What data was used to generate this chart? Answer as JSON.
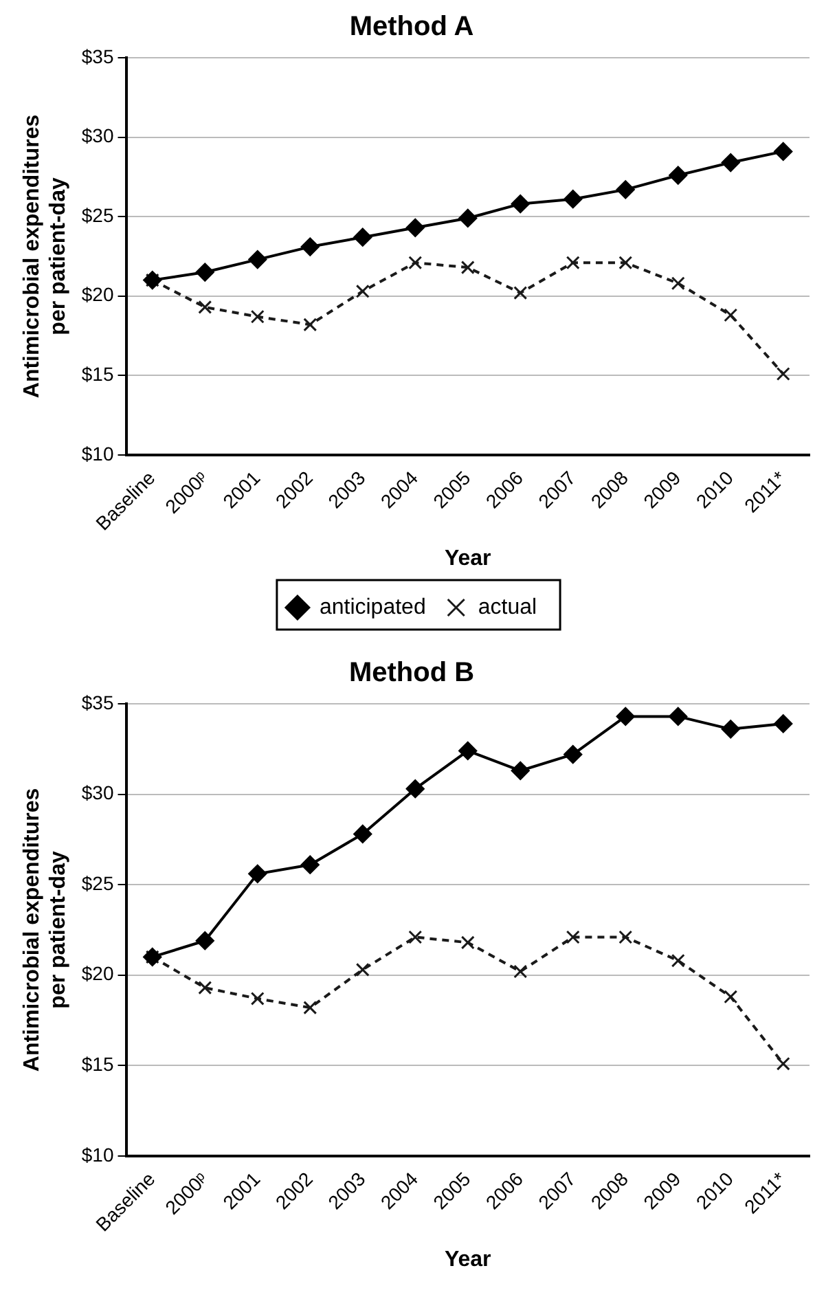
{
  "chart_data": [
    {
      "type": "line",
      "title": "Method A",
      "xlabel": "Year",
      "ylabel": "Antimicrobial expenditures per patient-day",
      "categories": [
        "Baseline",
        "2000ᵖ",
        "2001",
        "2002",
        "2003",
        "2004",
        "2005",
        "2006",
        "2007",
        "2008",
        "2009",
        "2010",
        "2011*"
      ],
      "series": [
        {
          "name": "anticipated",
          "color": "#000000",
          "marker": "diamond",
          "line_style": "solid",
          "values": [
            21.0,
            21.5,
            22.3,
            23.1,
            23.7,
            24.3,
            24.9,
            25.8,
            26.1,
            26.7,
            27.6,
            28.4,
            29.1
          ]
        },
        {
          "name": "actual",
          "color": "#1a1a1a",
          "marker": "cross",
          "line_style": "dashed",
          "values": [
            21.0,
            19.3,
            18.7,
            18.2,
            20.3,
            22.1,
            21.8,
            20.2,
            22.1,
            22.1,
            20.8,
            18.8,
            15.1
          ]
        }
      ],
      "ylim": [
        10,
        35
      ],
      "yticks": [
        {
          "value": 10,
          "label": "$10"
        },
        {
          "value": 15,
          "label": "$15"
        },
        {
          "value": 20,
          "label": "$20"
        },
        {
          "value": 25,
          "label": "$25"
        },
        {
          "value": 30,
          "label": "$30"
        },
        {
          "value": 35,
          "label": "$35"
        }
      ],
      "grid": "y",
      "legend": "bottom"
    },
    {
      "type": "line",
      "title": "Method B",
      "xlabel": "Year",
      "ylabel": "Antimicrobial expenditures per patient-day",
      "categories": [
        "Baseline",
        "2000ᵖ",
        "2001",
        "2002",
        "2003",
        "2004",
        "2005",
        "2006",
        "2007",
        "2008",
        "2009",
        "2010",
        "2011*"
      ],
      "series": [
        {
          "color": "#000000",
          "marker": "diamond",
          "line_style": "solid",
          "values": [
            21.0,
            21.9,
            25.6,
            26.1,
            27.8,
            30.3,
            32.4,
            31.3,
            32.2,
            34.3,
            34.3,
            33.6,
            33.9
          ]
        },
        {
          "color": "#1a1a1a",
          "marker": "cross",
          "line_style": "dashed",
          "values": [
            21.0,
            19.3,
            18.7,
            18.2,
            20.3,
            22.1,
            21.8,
            20.2,
            22.1,
            22.1,
            20.8,
            18.8,
            15.1
          ]
        }
      ],
      "ylim": [
        10,
        35
      ],
      "yticks": [
        {
          "value": 10,
          "label": "$10"
        },
        {
          "value": 15,
          "label": "$15"
        },
        {
          "value": 20,
          "label": "$20"
        },
        {
          "value": 25,
          "label": "$25"
        },
        {
          "value": 30,
          "label": "$30"
        },
        {
          "value": 35,
          "label": "$35"
        }
      ],
      "grid": "y",
      "legend": false
    }
  ]
}
